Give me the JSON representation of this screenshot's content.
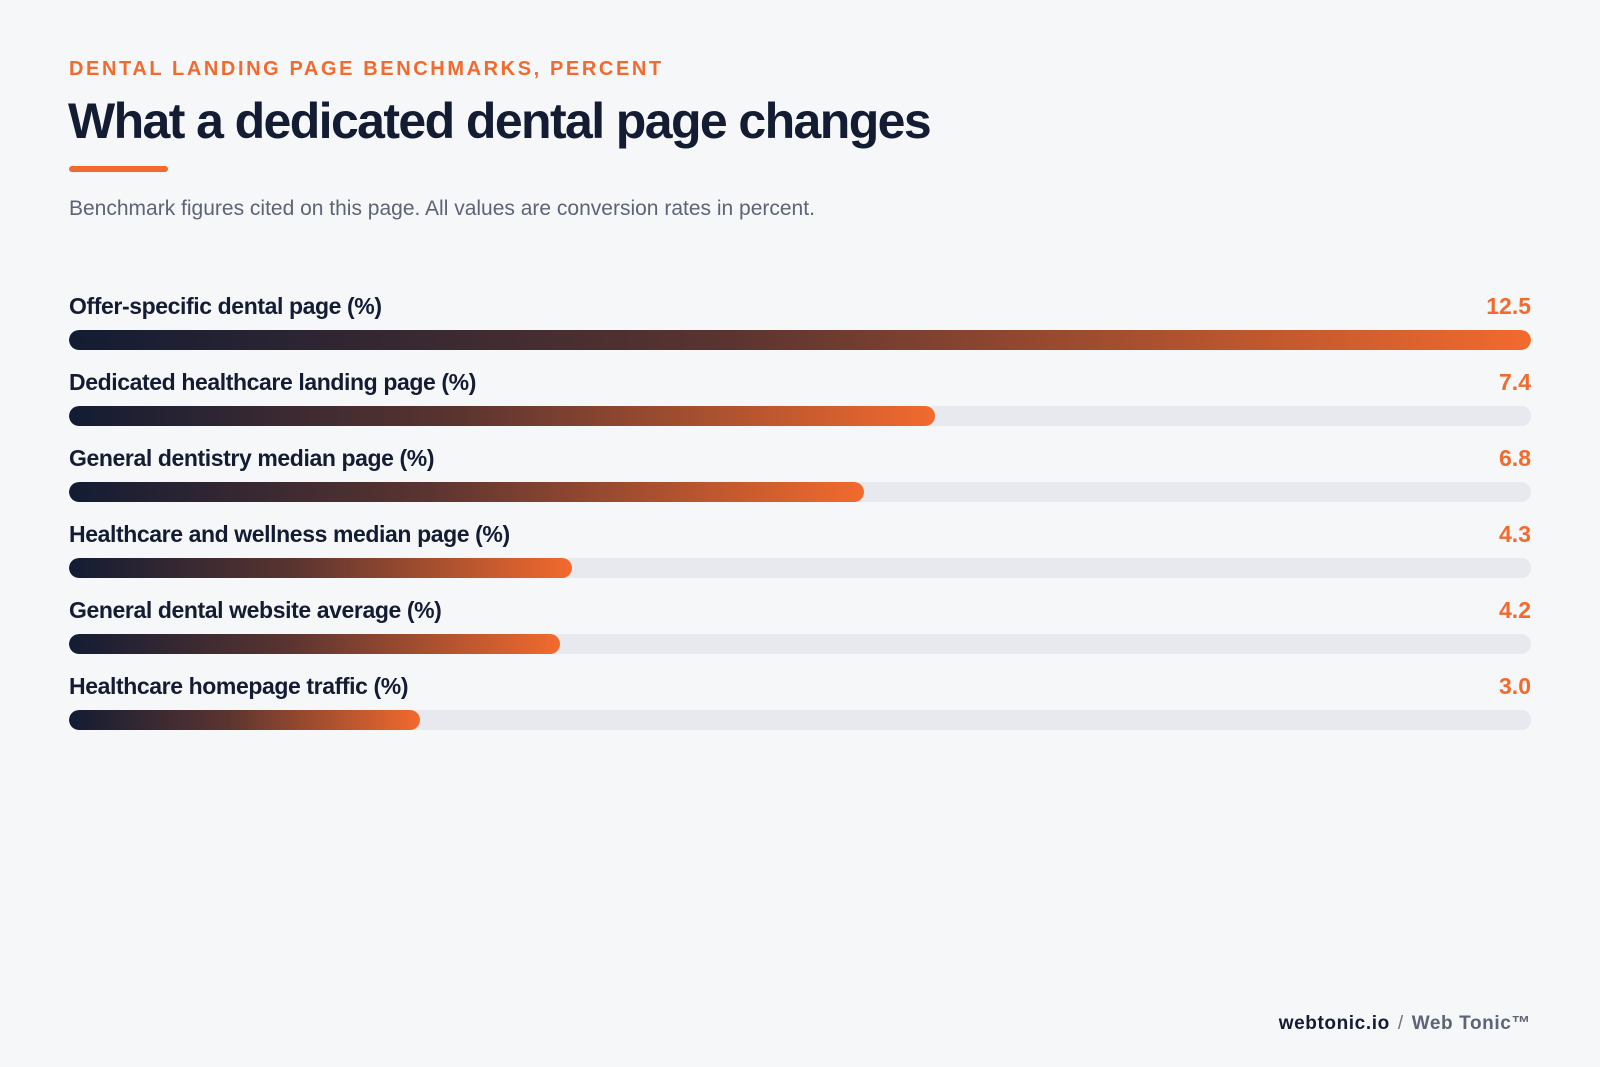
{
  "header": {
    "kicker": "DENTAL LANDING PAGE BENCHMARKS, PERCENT",
    "title": "What a dedicated dental page changes",
    "subtitle": "Benchmark figures cited on this page. All values are conversion rates in percent."
  },
  "footer": {
    "site": "webtonic.io",
    "separator": "/",
    "brand": "Web Tonic™"
  },
  "colors": {
    "accent": "#f26a2e",
    "ink": "#131c33",
    "track": "#e7e9ee",
    "background": "#f6f7f9"
  },
  "chart_data": {
    "type": "bar",
    "orientation": "horizontal",
    "title": "What a dedicated dental page changes",
    "subtitle": "Benchmark figures cited on this page. All values are conversion rates in percent.",
    "xlim": [
      0,
      12.5
    ],
    "grid": false,
    "categories": [
      "Offer-specific dental page (%)",
      "Dedicated healthcare landing page (%)",
      "General dentistry median page (%)",
      "Healthcare and wellness median page (%)",
      "General dental website average (%)",
      "Healthcare homepage traffic (%)"
    ],
    "values": [
      12.5,
      7.4,
      6.8,
      4.3,
      4.2,
      3.0
    ],
    "value_labels": [
      "12.5",
      "7.4",
      "6.8",
      "4.3",
      "4.2",
      "3.0"
    ]
  }
}
